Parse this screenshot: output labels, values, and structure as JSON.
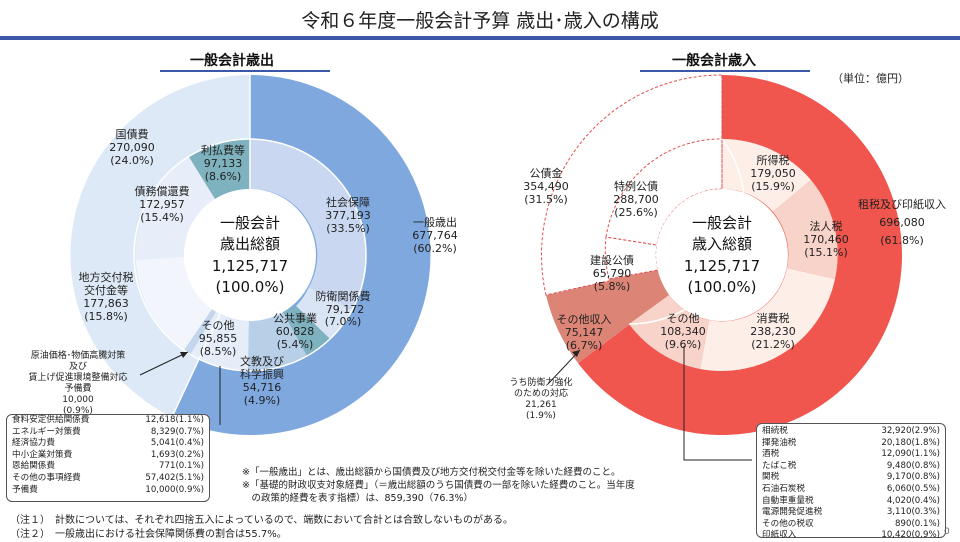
{
  "title": "令和６年度一般会計予算 歳出･歳入の構成",
  "left": {
    "heading": "一般会計歳出",
    "center": [
      "一般会計",
      "歳出総額",
      "1,125,717",
      "(100.0%)"
    ]
  },
  "right": {
    "heading": "一般会計歳入",
    "unit": "（単位：億円）",
    "center": [
      "一般会計",
      "歳入総額",
      "1,125,717",
      "(100.0%)"
    ]
  },
  "chart_data": [
    {
      "type": "pie",
      "title": "一般会計歳出",
      "total": 1125717,
      "outer_ring": [
        {
          "label": "一般歳出",
          "value": 677764,
          "percent": "60.2%"
        },
        {
          "label": "",
          "value": 447953,
          "note": "remaining portion (国債費 + 地方交付税交付金等)"
        }
      ],
      "inner_ring": [
        {
          "label": "社会保障",
          "value": 377193,
          "percent": "33.5%"
        },
        {
          "label": "防衛関係費",
          "value": 79172,
          "percent": "7.0%"
        },
        {
          "label": "公共事業",
          "value": 60828,
          "percent": "5.4%"
        },
        {
          "label": "文教及び科学振興",
          "value": 54716,
          "percent": "4.9%"
        },
        {
          "label": "その他",
          "value": 95855,
          "percent": "8.5%"
        },
        {
          "label": "原油価格･物価高騰対策及び賃上げ促進環境整備対応予備費",
          "value": 10000,
          "percent": "0.9%"
        },
        {
          "label": "地方交付税交付金等",
          "value": 177863,
          "percent": "15.8%"
        },
        {
          "label": "債務償還費",
          "value": 172957,
          "percent": "15.4%"
        },
        {
          "label": "利払費等",
          "value": 97133,
          "percent": "8.6%"
        }
      ],
      "groups": [
        {
          "label": "国債費",
          "value": 270090,
          "percent": "24.0%"
        }
      ],
      "other_breakdown": [
        {
          "label": "食料安定供給関係費",
          "value": "12,618",
          "percent": "(1.1%)"
        },
        {
          "label": "エネルギー対策費",
          "value": "8,329",
          "percent": "(0.7%)"
        },
        {
          "label": "経済協力費",
          "value": "5,041",
          "percent": "(0.4%)"
        },
        {
          "label": "中小企業対策費",
          "value": "1,693",
          "percent": "(0.2%)"
        },
        {
          "label": "恩給関係費",
          "value": "771",
          "percent": "(0.1%)"
        },
        {
          "label": "その他の事項経費",
          "value": "57,402",
          "percent": "(5.1%)"
        },
        {
          "label": "予備費",
          "value": "10,000",
          "percent": "(0.9%)"
        }
      ]
    },
    {
      "type": "pie",
      "title": "一般会計歳入",
      "total": 1125717,
      "outer_ring": [
        {
          "label": "租税及び印紙収入",
          "value": 696080,
          "percent": "61.8%"
        },
        {
          "label": "その他収入",
          "value": 75147,
          "percent": "6.7%"
        },
        {
          "label": "公債金",
          "value": 354490,
          "percent": "31.5%"
        }
      ],
      "inner_ring": [
        {
          "label": "所得税",
          "value": 179050,
          "percent": "15.9%"
        },
        {
          "label": "法人税",
          "value": 170460,
          "percent": "15.1%"
        },
        {
          "label": "消費税",
          "value": 238230,
          "percent": "21.2%"
        },
        {
          "label": "その他",
          "value": 108340,
          "percent": "9.6%"
        },
        {
          "label": "その他収入",
          "value": 75147,
          "percent": "6.7%"
        },
        {
          "label": "建設公債",
          "value": 65790,
          "percent": "5.8%"
        },
        {
          "label": "特例公債",
          "value": 288700,
          "percent": "25.6%"
        }
      ],
      "callouts": [
        {
          "label": "うち防衛力強化のための対応",
          "value": 21261,
          "percent": "1.9%"
        }
      ],
      "tax_breakdown": [
        {
          "label": "相続税",
          "value": "32,920",
          "percent": "(2.9%)"
        },
        {
          "label": "揮発油税",
          "value": "20,180",
          "percent": "(1.8%)"
        },
        {
          "label": "酒税",
          "value": "12,090",
          "percent": "(1.1%)"
        },
        {
          "label": "たばこ税",
          "value": "9,480",
          "percent": "(0.8%)"
        },
        {
          "label": "関税",
          "value": "9,170",
          "percent": "(0.8%)"
        },
        {
          "label": "石油石炭税",
          "value": "6,060",
          "percent": "(0.5%)"
        },
        {
          "label": "自動車重量税",
          "value": "4,020",
          "percent": "(0.4%)"
        },
        {
          "label": "電源開発促進税",
          "value": "3,110",
          "percent": "(0.3%)"
        },
        {
          "label": "その他の税収",
          "value": "890",
          "percent": "(0.1%)"
        },
        {
          "label": "印紙収入",
          "value": "10,420",
          "percent": "(0.9%)"
        }
      ]
    }
  ],
  "notes": [
    "※「一般歳出」とは、歳出総額から国債費及び地方交付税交付金等を除いた経費のこと。",
    "※「基礎的財政収支対象経費」（＝歳出総額のうち国債費の一部を除いた経費のこと。当年度",
    "　の政策的経費を表す指標）は、859,390（76.3%）"
  ],
  "footnotes": [
    "（注１）　計数については、それぞれ四捨五入によっているので、端数において合計とは合致しないものがある。",
    "（注２）　一般歳出における社会保障関係費の割合は55.7%。"
  ],
  "page_number": "0",
  "colors": {
    "accent_blue": "#3b57a8",
    "exp_outer": "#7fa8df",
    "exp_outer_light": "#dde9f6",
    "exp_social": "#c9d8f0",
    "exp_other": "#e1eaf8",
    "exp_teal": "#7fb2bf",
    "rev_outer": "#f0564e",
    "rev_outer2": "#dc8577",
    "rev_inner": "#f8d3c9",
    "rev_inner2": "#fdeee8"
  }
}
